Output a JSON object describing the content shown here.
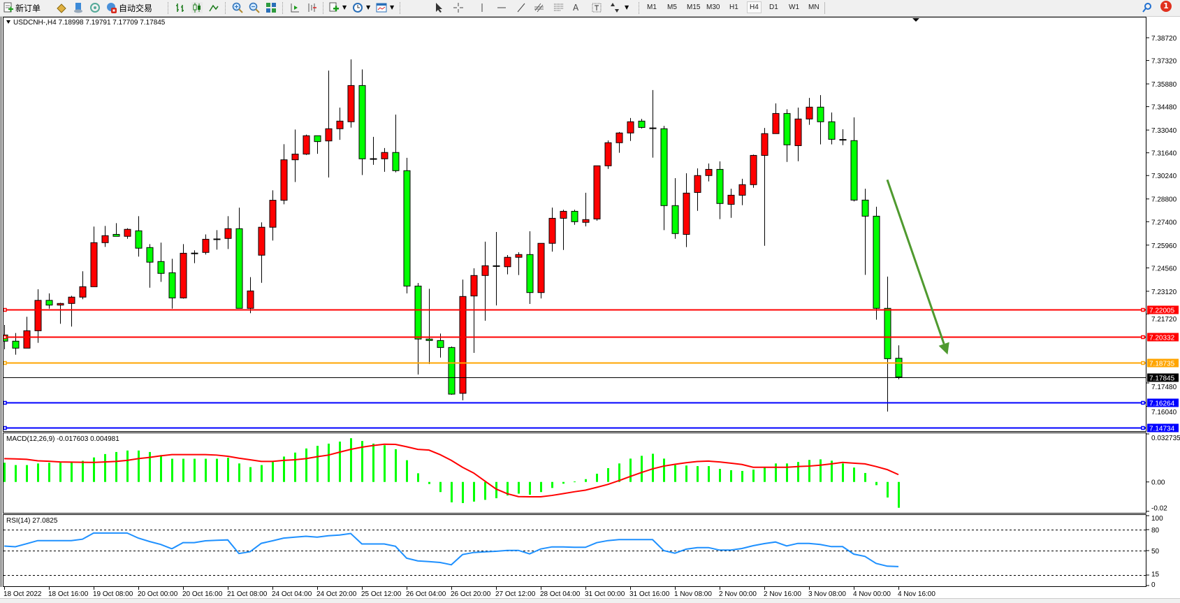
{
  "toolbar": {
    "new_order_label": "新订单",
    "auto_trading_label": "自动交易",
    "icons": [
      "new-order-icon",
      "market-watch-icon",
      "data-window-icon",
      "signals-icon",
      "auto-trading-icon",
      "bar-chart-icon",
      "candlestick-icon",
      "line-chart-icon",
      "zoom-in-icon",
      "zoom-out-icon",
      "tile-windows-icon",
      "chart-shift-icon",
      "autoscroll-icon",
      "indicators-icon",
      "periods-icon",
      "templates-icon",
      "cursor-icon",
      "crosshair-icon",
      "vertical-line-icon",
      "horizontal-line-icon",
      "trendline-icon",
      "fibonacci-channel-icon",
      "fibonacci-icon",
      "text-icon",
      "text-label-icon",
      "arrows-icon"
    ],
    "timeframes": [
      "M1",
      "M5",
      "M15",
      "M30",
      "H1",
      "H4",
      "D1",
      "W1",
      "MN"
    ],
    "active_timeframe": "H4",
    "text_tool_label": "A",
    "notification_count": "1"
  },
  "chart": {
    "header": "USDCNH-,H4  7.18998 7.19791 7.17709 7.17845",
    "symbol": "USDCNH-",
    "period": "H4",
    "ohlc_readout": {
      "open": "7.18998",
      "high": "7.19791",
      "low": "7.17709",
      "close": "7.17845"
    },
    "colors": {
      "bull": "#ff0000",
      "bear": "#00ff00",
      "macd_hist": "#00ff00",
      "macd_signal": "#ff0000",
      "rsi": "#1e90ff",
      "arrow": "#4f9a2f"
    },
    "price_range": [
      7.14515,
      7.4001
    ],
    "price_ticks": [
      "7.38720",
      "7.37320",
      "7.35880",
      "7.34480",
      "7.33040",
      "7.31640",
      "7.30240",
      "7.28800",
      "7.27400",
      "7.25960",
      "7.24560",
      "7.23120",
      "7.21720",
      "7.17480",
      "7.16040"
    ],
    "levels": [
      {
        "price": "7.22005",
        "color": "#ff0000"
      },
      {
        "price": "7.20332",
        "color": "#ff0000"
      },
      {
        "price": "7.18735",
        "color": "#ffa500"
      },
      {
        "price": "7.16264",
        "color": "#0000ff"
      },
      {
        "price": "7.14734",
        "color": "#0000ff"
      }
    ],
    "current_price": "7.17845",
    "time_labels": [
      "18 Oct 2022",
      "18 Oct 16:00",
      "19 Oct 08:00",
      "20 Oct 00:00",
      "20 Oct 16:00",
      "21 Oct 08:00",
      "24 Oct 04:00",
      "24 Oct 20:00",
      "25 Oct 12:00",
      "26 Oct 04:00",
      "26 Oct 20:00",
      "27 Oct 12:00",
      "28 Oct 04:00",
      "31 Oct 00:00",
      "31 Oct 16:00",
      "1 Nov 08:00",
      "2 Nov 00:00",
      "2 Nov 16:00",
      "3 Nov 08:00",
      "4 Nov 00:00",
      "4 Nov 16:00"
    ],
    "candles_ohlc": [
      [
        7.2043,
        7.2105,
        7.1955,
        7.2005
      ],
      [
        7.2005,
        7.2055,
        7.1922,
        7.1962
      ],
      [
        7.1962,
        7.2155,
        7.1962,
        7.2069
      ],
      [
        7.2069,
        7.2324,
        7.1995,
        7.2256
      ],
      [
        7.2256,
        7.2299,
        7.2205,
        7.2227
      ],
      [
        7.2227,
        7.2241,
        7.2112,
        7.2237
      ],
      [
        7.2237,
        7.2284,
        7.2095,
        7.2276
      ],
      [
        7.2276,
        7.2435,
        7.2263,
        7.234
      ],
      [
        7.234,
        7.271,
        7.234,
        7.2611
      ],
      [
        7.2611,
        7.2714,
        7.2585,
        7.2654
      ],
      [
        7.2662,
        7.2731,
        7.265,
        7.265
      ],
      [
        7.265,
        7.27,
        7.2635,
        7.2693
      ],
      [
        7.2684,
        7.2774,
        7.2525,
        7.2577
      ],
      [
        7.2581,
        7.2602,
        7.2334,
        7.2491
      ],
      [
        7.2495,
        7.2611,
        7.237,
        7.2422
      ],
      [
        7.2426,
        7.2512,
        7.2205,
        7.2271
      ],
      [
        7.2271,
        7.2602,
        7.2267,
        7.2546
      ],
      [
        7.2546,
        7.2564,
        7.2485,
        7.2547
      ],
      [
        7.2551,
        7.2662,
        7.2538,
        7.2632
      ],
      [
        7.2632,
        7.2688,
        7.2568,
        7.2634
      ],
      [
        7.2637,
        7.2774,
        7.2572,
        7.2697
      ],
      [
        7.2697,
        7.2826,
        7.2207,
        7.2207
      ],
      [
        7.2207,
        7.2399,
        7.2177,
        7.2314
      ],
      [
        7.2534,
        7.2736,
        7.2364,
        7.2706
      ],
      [
        7.2706,
        7.2933,
        7.2624,
        7.2872
      ],
      [
        7.2872,
        7.3217,
        7.2847,
        7.3121
      ],
      [
        7.3121,
        7.3307,
        7.2984,
        7.3156
      ],
      [
        7.3156,
        7.3276,
        7.3151,
        7.3269
      ],
      [
        7.3269,
        7.3269,
        7.3158,
        7.3233
      ],
      [
        7.3237,
        7.367,
        7.3012,
        7.3312
      ],
      [
        7.3312,
        7.3442,
        7.3244,
        7.3359
      ],
      [
        7.3355,
        7.3739,
        7.3319,
        7.3578
      ],
      [
        7.3578,
        7.3677,
        7.3027,
        7.3127
      ],
      [
        7.3127,
        7.3262,
        7.309,
        7.3128
      ],
      [
        7.3127,
        7.3193,
        7.3047,
        7.3166
      ],
      [
        7.3166,
        7.3399,
        7.3044,
        7.3054
      ],
      [
        7.3054,
        7.3133,
        7.2299,
        7.2344
      ],
      [
        7.2344,
        7.2363,
        7.18,
        7.2018
      ],
      [
        7.2018,
        7.2327,
        7.1864,
        7.2009
      ],
      [
        7.2009,
        7.2052,
        7.1904,
        7.1966
      ],
      [
        7.1966,
        7.1972,
        7.1675,
        7.1679
      ],
      [
        7.1684,
        7.2384,
        7.1641,
        7.228
      ],
      [
        7.2283,
        7.2453,
        7.1933,
        7.2409
      ],
      [
        7.2409,
        7.2617,
        7.2131,
        7.2469
      ],
      [
        7.2468,
        7.2677,
        7.2225,
        7.2469
      ],
      [
        7.2463,
        7.2535,
        7.2416,
        7.2521
      ],
      [
        7.2521,
        7.2552,
        7.2412,
        7.2538
      ],
      [
        7.2538,
        7.2681,
        7.2234,
        7.2304
      ],
      [
        7.2304,
        7.2607,
        7.2268,
        7.2607
      ],
      [
        7.2607,
        7.2827,
        7.2556,
        7.2761
      ],
      [
        7.2761,
        7.2814,
        7.2566,
        7.2804
      ],
      [
        7.2804,
        7.2814,
        7.2721,
        7.274
      ],
      [
        7.2736,
        7.2918,
        7.2711,
        7.2753
      ],
      [
        7.2757,
        7.3084,
        7.2746,
        7.3084
      ],
      [
        7.3084,
        7.324,
        7.3065,
        7.3226
      ],
      [
        7.3226,
        7.3292,
        7.3164,
        7.3286
      ],
      [
        7.3286,
        7.3378,
        7.3237,
        7.3355
      ],
      [
        7.3359,
        7.3373,
        7.3313,
        7.332
      ],
      [
        7.3316,
        7.355,
        7.3134,
        7.3317
      ],
      [
        7.3312,
        7.333,
        7.2688,
        7.2839
      ],
      [
        7.2839,
        7.3008,
        7.2635,
        7.2667
      ],
      [
        7.2662,
        7.3038,
        7.2584,
        7.2916
      ],
      [
        7.292,
        7.3068,
        7.2807,
        7.3024
      ],
      [
        7.3024,
        7.3098,
        7.2988,
        7.3062
      ],
      [
        7.3062,
        7.3111,
        7.2756,
        7.2852
      ],
      [
        7.2847,
        7.2943,
        7.2764,
        7.2903
      ],
      [
        7.2903,
        7.3004,
        7.2842,
        7.2968
      ],
      [
        7.2968,
        7.3153,
        7.2949,
        7.3148
      ],
      [
        7.3148,
        7.3317,
        7.2592,
        7.3282
      ],
      [
        7.3282,
        7.3468,
        7.3282,
        7.3406
      ],
      [
        7.3406,
        7.3432,
        7.3108,
        7.3213
      ],
      [
        7.3208,
        7.3442,
        7.3112,
        7.3372
      ],
      [
        7.3372,
        7.3502,
        7.3336,
        7.3445
      ],
      [
        7.3445,
        7.3519,
        7.3216,
        7.3355
      ],
      [
        7.3355,
        7.3412,
        7.3216,
        7.3247
      ],
      [
        7.3246,
        7.3309,
        7.3211,
        7.3246
      ],
      [
        7.3239,
        7.3382,
        7.2865,
        7.2873
      ],
      [
        7.2873,
        7.2943,
        7.2413,
        7.2774
      ],
      [
        7.2774,
        7.2832,
        7.2137,
        7.2207
      ],
      [
        7.2207,
        7.2402,
        7.1572,
        7.1897
      ],
      [
        7.18998,
        7.19791,
        7.17709,
        7.17845
      ]
    ],
    "trend_arrow": {
      "from": {
        "bar": 79.0,
        "price": 7.2998
      },
      "to": {
        "bar": 84.4,
        "price": 7.1923
      }
    }
  },
  "macd": {
    "label": "MACD(12,26,9) -0.017603 0.004981",
    "range": [
      -0.0206,
      0.032735
    ],
    "axis_labels": [
      {
        "text": "0.032735",
        "value": 0.032735
      },
      {
        "text": "0.00",
        "value": 0.0
      },
      {
        "text": "-0.02",
        "value": -0.02
      }
    ],
    "histogram": [
      0.0131,
      0.0115,
      0.0115,
      0.0126,
      0.0131,
      0.0131,
      0.0139,
      0.0144,
      0.0167,
      0.019,
      0.0204,
      0.0214,
      0.0214,
      0.0204,
      0.0183,
      0.0158,
      0.0158,
      0.0158,
      0.0158,
      0.0158,
      0.0165,
      0.0126,
      0.0101,
      0.0115,
      0.0136,
      0.0173,
      0.02,
      0.0228,
      0.0246,
      0.0261,
      0.0275,
      0.0298,
      0.0279,
      0.0261,
      0.025,
      0.0223,
      0.0148,
      0.0059,
      -0.0014,
      -0.0069,
      -0.0139,
      -0.0144,
      -0.0134,
      -0.0122,
      -0.0111,
      -0.0092,
      -0.008,
      -0.0087,
      -0.0069,
      -0.0041,
      -0.0012,
      0.0003,
      0.0019,
      0.0056,
      0.0094,
      0.0126,
      0.0159,
      0.0178,
      0.0192,
      0.0159,
      0.0115,
      0.0112,
      0.0108,
      0.0108,
      0.0089,
      0.008,
      0.0075,
      0.0084,
      0.0098,
      0.0126,
      0.0126,
      0.0136,
      0.015,
      0.0154,
      0.0145,
      0.0126,
      0.0098,
      0.0061,
      -0.0022,
      -0.0106,
      -0.0176
    ],
    "signal": [
      0.0159,
      0.0157,
      0.0154,
      0.0144,
      0.0141,
      0.0136,
      0.0135,
      0.0134,
      0.0133,
      0.0136,
      0.014,
      0.0147,
      0.0159,
      0.0167,
      0.0178,
      0.0186,
      0.0186,
      0.0186,
      0.0186,
      0.0183,
      0.0175,
      0.0162,
      0.0151,
      0.014,
      0.014,
      0.0147,
      0.0151,
      0.0159,
      0.0172,
      0.0183,
      0.0203,
      0.0222,
      0.0237,
      0.0248,
      0.0257,
      0.0256,
      0.024,
      0.0222,
      0.0217,
      0.0186,
      0.0147,
      0.01,
      0.0061,
      0.0006,
      -0.0048,
      -0.008,
      -0.01,
      -0.0101,
      -0.0101,
      -0.0092,
      -0.008,
      -0.0067,
      -0.0056,
      -0.0037,
      -0.0017,
      0.0009,
      0.0037,
      0.0064,
      0.0089,
      0.0108,
      0.012,
      0.0131,
      0.0139,
      0.0142,
      0.0136,
      0.0128,
      0.0119,
      0.01,
      0.01,
      0.01,
      0.01,
      0.0105,
      0.0108,
      0.0114,
      0.0123,
      0.0133,
      0.0128,
      0.0123,
      0.0105,
      0.0084,
      0.005
    ]
  },
  "rsi": {
    "label": "RSI(14) 27.0825",
    "levels": [
      80,
      50,
      15
    ],
    "axis_labels": [
      {
        "text": "100",
        "value": 100
      },
      {
        "text": "80",
        "value": 80
      },
      {
        "text": "50",
        "value": 50
      },
      {
        "text": "15",
        "value": 15
      },
      {
        "text": "0",
        "value": 0
      }
    ],
    "values": [
      56.5,
      55.5,
      59.8,
      64.3,
      64.3,
      64.3,
      64.3,
      66.3,
      75.1,
      75.1,
      75.1,
      75.1,
      67.9,
      63.0,
      58.8,
      52.6,
      61.4,
      61.4,
      64.0,
      64.7,
      65.3,
      45.8,
      48.4,
      60.4,
      64.0,
      67.9,
      69.2,
      70.5,
      69.2,
      71.2,
      72.2,
      74.5,
      59.5,
      59.5,
      59.5,
      56.2,
      39.2,
      35.3,
      34.3,
      33.0,
      29.7,
      44.3,
      47.3,
      48.3,
      49.0,
      50.3,
      50.3,
      45.3,
      52.3,
      55.3,
      55.3,
      54.7,
      54.7,
      61.3,
      64.3,
      65.7,
      65.7,
      65.7,
      65.7,
      50.0,
      46.3,
      52.0,
      54.3,
      54.3,
      50.7,
      50.7,
      53.0,
      57.0,
      60.0,
      62.3,
      56.7,
      60.3,
      60.3,
      58.7,
      55.7,
      55.7,
      45.0,
      41.7,
      31.7,
      27.7,
      27.0825
    ]
  }
}
